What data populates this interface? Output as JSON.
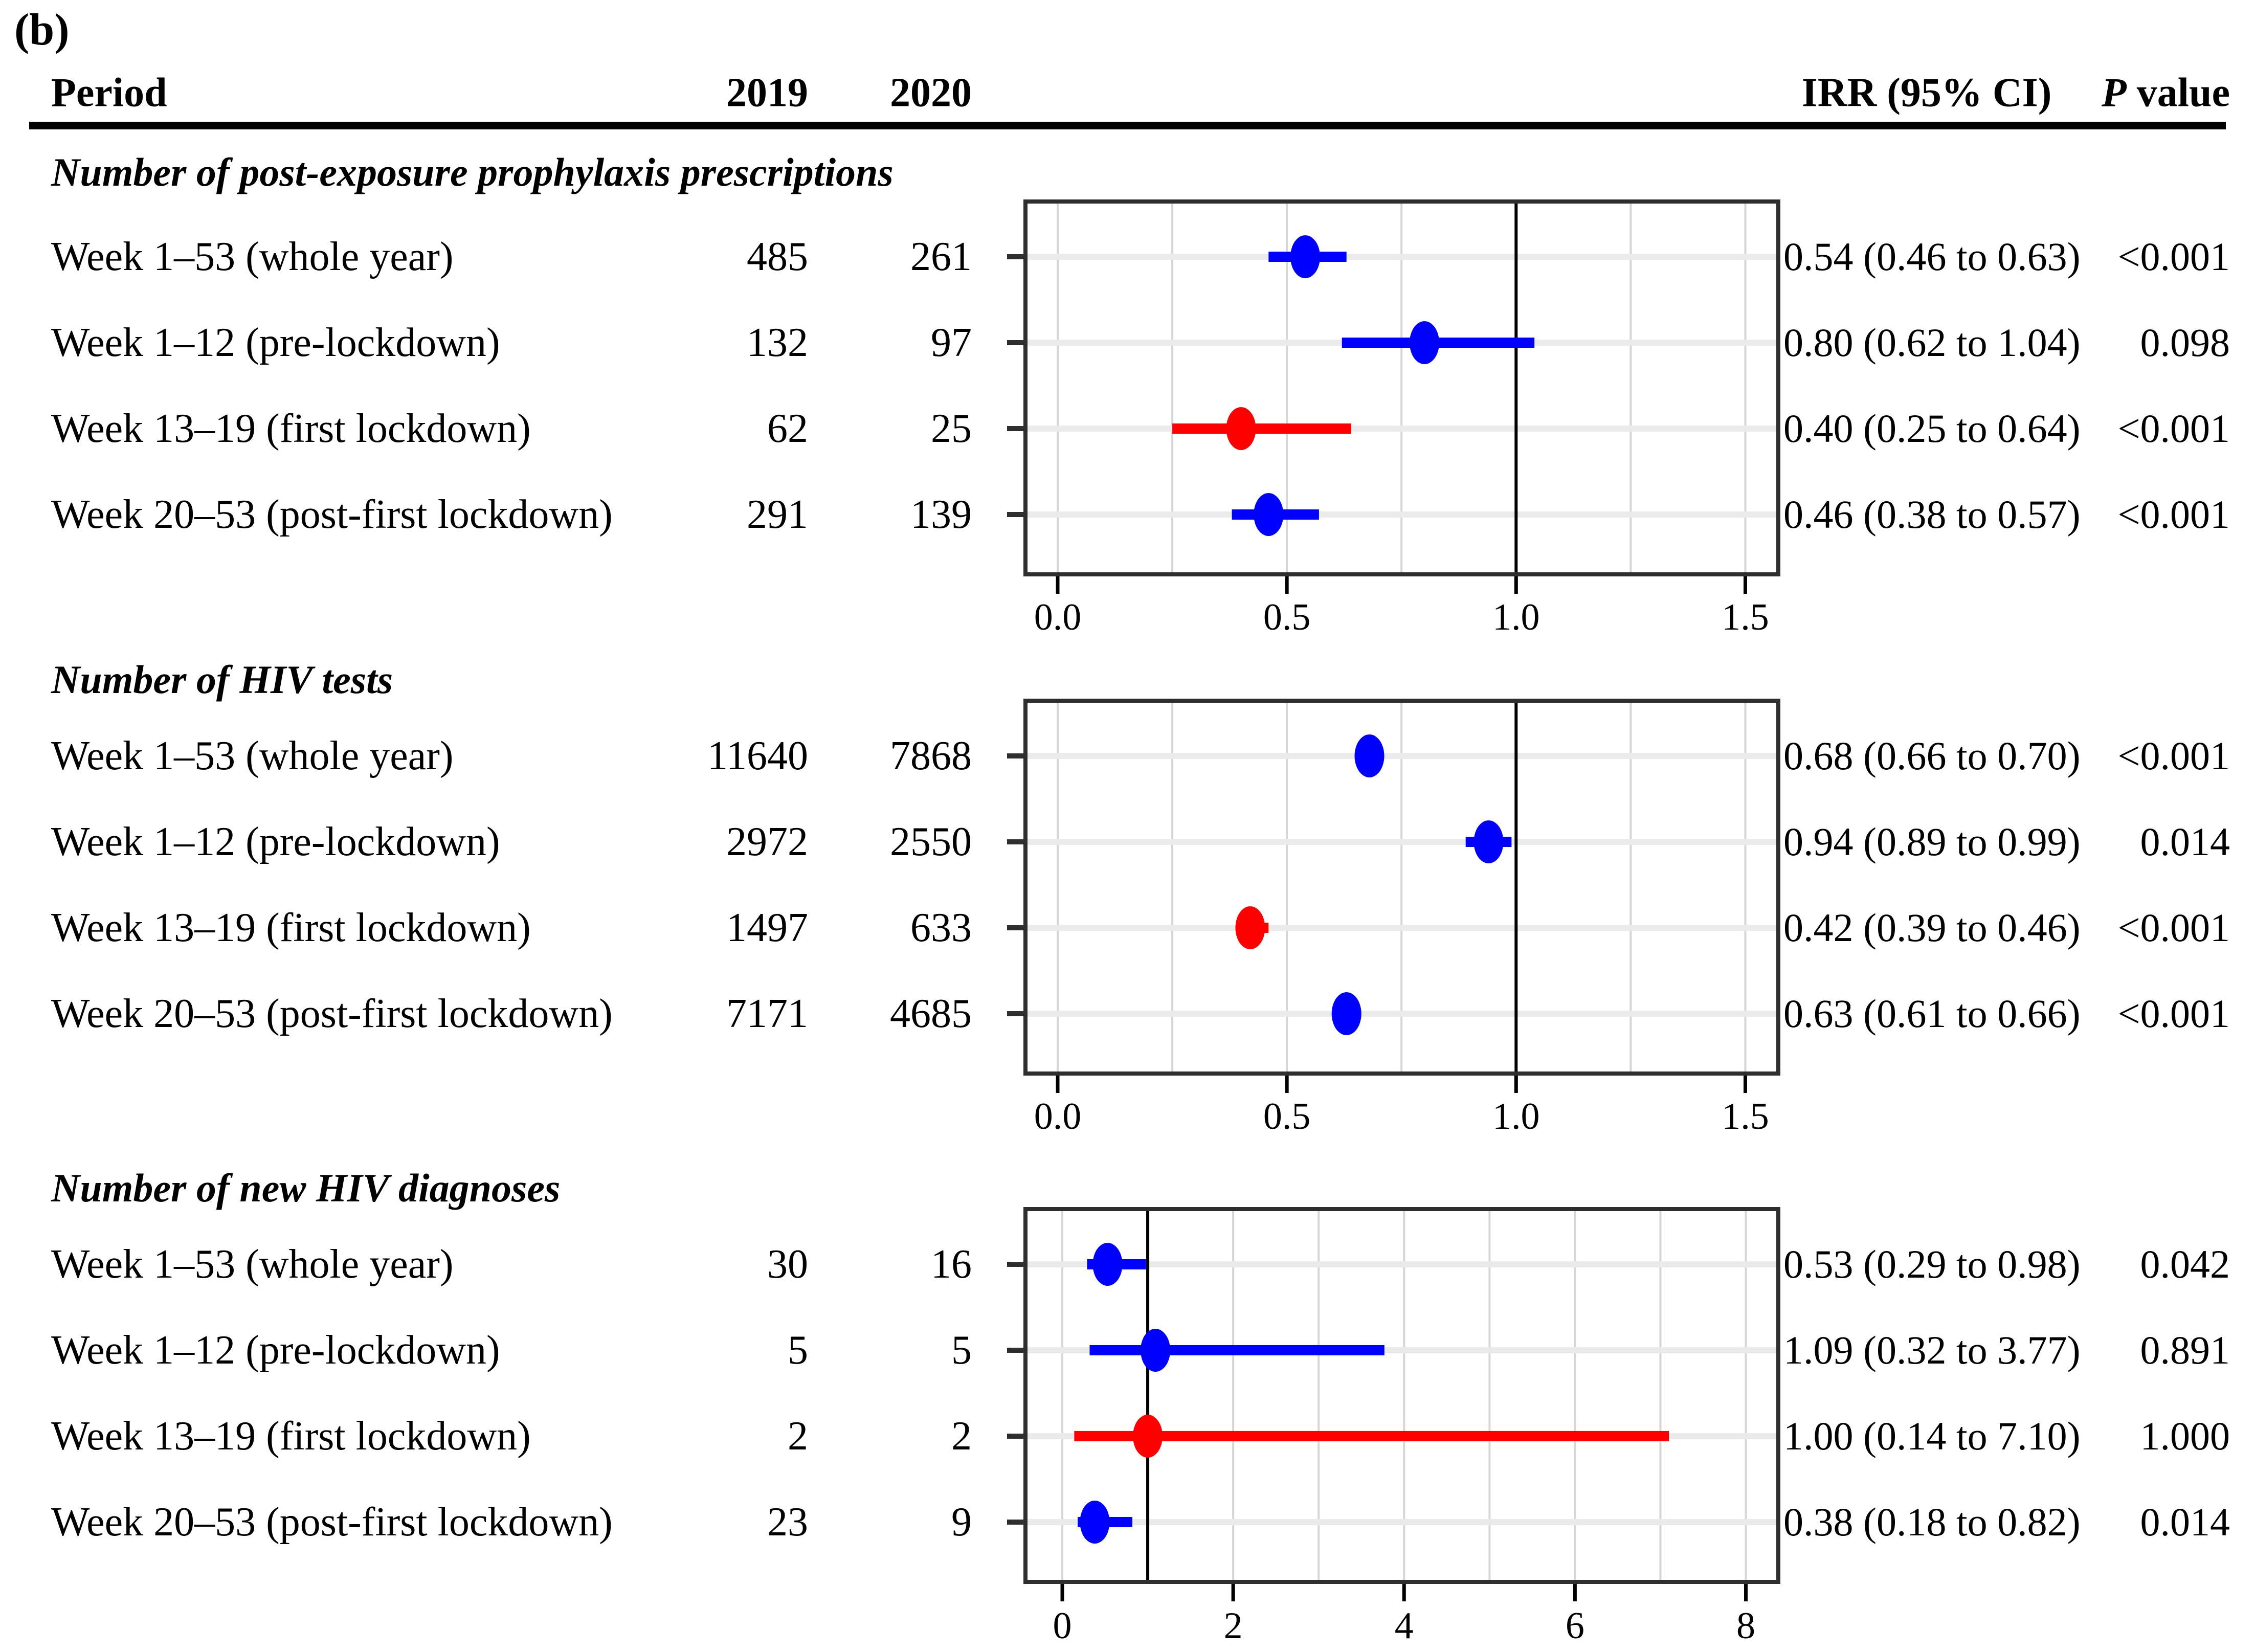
{
  "figure_label": "(b)",
  "header": {
    "period": "Period",
    "y2019": "2019",
    "y2020": "2020",
    "irr": "IRR (95% CI)",
    "p_italic": "P",
    "p_rest": " value"
  },
  "colors": {
    "blue": "#0000FF",
    "red": "#FF0000",
    "grid": "#D6D6D6",
    "row_grid": "#EAEAEA",
    "ref_line": "#000000",
    "panel_border": "#2E2E2E",
    "tick": "#000000"
  },
  "chart_data": [
    {
      "type": "forest",
      "title": "Number of post-exposure prophylaxis prescriptions",
      "xlim": [
        0,
        1.572
      ],
      "ticks": [
        0,
        0.5,
        1.0,
        1.5
      ],
      "tick_labels": [
        "0.0",
        "0.5",
        "1.0",
        "1.5"
      ],
      "grid_step": 0.25,
      "ref_line": 1.0,
      "rows": [
        {
          "label": "Week 1–53 (whole year)",
          "n2019": "485",
          "n2020": "261",
          "est": 0.54,
          "lo": 0.46,
          "hi": 0.63,
          "irr_text": "0.54 (0.46 to 0.63)",
          "p_text": "<0.001",
          "color": "blue"
        },
        {
          "label": "Week 1–12 (pre-lockdown)",
          "n2019": "132",
          "n2020": "97",
          "est": 0.8,
          "lo": 0.62,
          "hi": 1.04,
          "irr_text": "0.80 (0.62 to 1.04)",
          "p_text": "0.098",
          "color": "blue"
        },
        {
          "label": "Week 13–19 (first lockdown)",
          "n2019": "62",
          "n2020": "25",
          "est": 0.4,
          "lo": 0.25,
          "hi": 0.64,
          "irr_text": "0.40 (0.25 to 0.64)",
          "p_text": "<0.001",
          "color": "red"
        },
        {
          "label": "Week 20–53 (post-first lockdown)",
          "n2019": "291",
          "n2020": "139",
          "est": 0.46,
          "lo": 0.38,
          "hi": 0.57,
          "irr_text": "0.46 (0.38 to 0.57)",
          "p_text": "<0.001",
          "color": "blue"
        }
      ]
    },
    {
      "type": "forest",
      "title": "Number of HIV tests",
      "xlim": [
        0,
        1.572
      ],
      "ticks": [
        0,
        0.5,
        1.0,
        1.5
      ],
      "tick_labels": [
        "0.0",
        "0.5",
        "1.0",
        "1.5"
      ],
      "grid_step": 0.25,
      "ref_line": 1.0,
      "rows": [
        {
          "label": "Week 1–53 (whole year)",
          "n2019": "11640",
          "n2020": "7868",
          "est": 0.68,
          "lo": 0.66,
          "hi": 0.7,
          "irr_text": "0.68 (0.66 to 0.70)",
          "p_text": "<0.001",
          "color": "blue"
        },
        {
          "label": "Week 1–12 (pre-lockdown)",
          "n2019": "2972",
          "n2020": "2550",
          "est": 0.94,
          "lo": 0.89,
          "hi": 0.99,
          "irr_text": "0.94 (0.89 to 0.99)",
          "p_text": "0.014",
          "color": "blue"
        },
        {
          "label": "Week 13–19 (first lockdown)",
          "n2019": "1497",
          "n2020": "633",
          "est": 0.42,
          "lo": 0.39,
          "hi": 0.46,
          "irr_text": "0.42 (0.39 to 0.46)",
          "p_text": "<0.001",
          "color": "red"
        },
        {
          "label": "Week 20–53 (post-first lockdown)",
          "n2019": "7171",
          "n2020": "4685",
          "est": 0.63,
          "lo": 0.61,
          "hi": 0.66,
          "irr_text": "0.63 (0.61 to 0.66)",
          "p_text": "<0.001",
          "color": "blue"
        }
      ]
    },
    {
      "type": "forest",
      "title": "Number of new HIV diagnoses",
      "xlim": [
        0,
        8.38
      ],
      "ticks": [
        0,
        2,
        4,
        6,
        8
      ],
      "tick_labels": [
        "0",
        "2",
        "4",
        "6",
        "8"
      ],
      "grid_step": 1,
      "ref_line": 1.0,
      "rows": [
        {
          "label": "Week 1–53 (whole year)",
          "n2019": "30",
          "n2020": "16",
          "est": 0.53,
          "lo": 0.29,
          "hi": 0.98,
          "irr_text": "0.53 (0.29 to 0.98)",
          "p_text": "0.042",
          "color": "blue"
        },
        {
          "label": "Week 1–12 (pre-lockdown)",
          "n2019": "5",
          "n2020": "5",
          "est": 1.09,
          "lo": 0.32,
          "hi": 3.77,
          "irr_text": "1.09 (0.32 to 3.77)",
          "p_text": "0.891",
          "color": "blue"
        },
        {
          "label": "Week 13–19 (first lockdown)",
          "n2019": "2",
          "n2020": "2",
          "est": 1.0,
          "lo": 0.14,
          "hi": 7.1,
          "irr_text": "1.00 (0.14 to 7.10)",
          "p_text": "1.000",
          "color": "red"
        },
        {
          "label": "Week 20–53 (post-first lockdown)",
          "n2019": "23",
          "n2020": "9",
          "est": 0.38,
          "lo": 0.18,
          "hi": 0.82,
          "irr_text": "0.38 (0.18 to 0.82)",
          "p_text": "0.014",
          "color": "blue"
        }
      ]
    }
  ]
}
